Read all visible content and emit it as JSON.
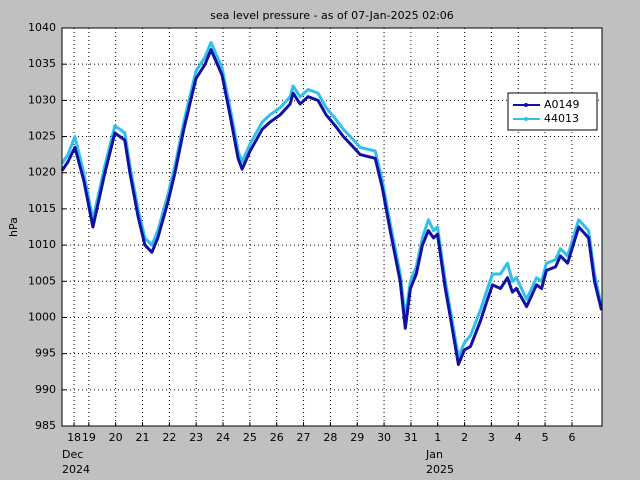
{
  "chart_data": {
    "type": "line",
    "title": "sea level pressure - as of 07-Jan-2025 02:06",
    "ylabel": "hPa",
    "annotations": [
      "Dec",
      "2024",
      "Jan",
      "2025"
    ],
    "x": [
      18.0,
      18.22,
      18.48,
      18.81,
      19.15,
      19.6,
      19.97,
      20.34,
      20.53,
      20.83,
      21.09,
      21.35,
      21.57,
      21.95,
      22.21,
      22.54,
      22.99,
      23.33,
      23.55,
      23.96,
      24.26,
      24.56,
      24.71,
      25.01,
      25.46,
      25.75,
      26.13,
      26.5,
      26.61,
      26.87,
      27.17,
      27.54,
      27.84,
      28.18,
      28.48,
      28.74,
      29.11,
      29.67,
      29.93,
      30.23,
      30.6,
      30.79,
      30.98,
      31.2,
      31.43,
      31.65,
      31.84,
      31.99,
      32.28,
      32.47,
      32.77,
      32.99,
      33.22,
      33.59,
      33.81,
      34.04,
      34.34,
      34.6,
      34.78,
      34.93,
      35.31,
      35.68,
      35.87,
      36.05,
      36.39,
      36.57,
      36.84,
      37.25,
      37.62,
      37.84,
      38.1
    ],
    "series": [
      {
        "name": "A0149",
        "color": "#1010a8",
        "values": [
          1020.3,
          1021.5,
          1023.5,
          1019,
          1012.5,
          1020,
          1025.5,
          1024.5,
          1020,
          1014,
          1010,
          1009,
          1011,
          1016,
          1020,
          1026,
          1033,
          1035,
          1037,
          1033.5,
          1028,
          1022,
          1020.5,
          1023,
          1026,
          1027,
          1028,
          1029.5,
          1031,
          1029.5,
          1030.5,
          1030,
          1028,
          1026.5,
          1025,
          1024,
          1022.5,
          1022,
          1018,
          1012,
          1005,
          998.5,
          1004,
          1006,
          1010,
          1012,
          1011,
          1011.5,
          1004,
          1000,
          993.5,
          995.5,
          996,
          999.5,
          1002,
          1004.5,
          1004,
          1005.5,
          1003.5,
          1004,
          1001.5,
          1004.5,
          1004,
          1006.5,
          1007,
          1008.5,
          1007.5,
          1012.5,
          1011,
          1005,
          1001
        ]
      },
      {
        "name": "44013",
        "color": "#30c0ec",
        "values": [
          1021.3,
          1022.5,
          1025,
          1020,
          1013.5,
          1021,
          1026.5,
          1025.5,
          1021,
          1015,
          1011,
          1010,
          1012,
          1017,
          1021,
          1027,
          1034,
          1036,
          1038,
          1034.5,
          1029,
          1023,
          1021.5,
          1024,
          1027,
          1028,
          1029,
          1030.5,
          1032,
          1030.5,
          1031.5,
          1031,
          1029,
          1027.5,
          1026,
          1025,
          1023.5,
          1023,
          1019,
          1013,
          1006,
          1000,
          1005,
          1007,
          1011,
          1013.5,
          1012,
          1012.5,
          1005,
          1001,
          994.5,
          996.5,
          997.5,
          1001,
          1003.5,
          1006,
          1006,
          1007.5,
          1005,
          1005.5,
          1002.5,
          1005.5,
          1005,
          1007.5,
          1008,
          1009.5,
          1008.5,
          1013.5,
          1012,
          1006,
          1001.5
        ]
      }
    ],
    "xlim": [
      18.0,
      38.12
    ],
    "xticks": [
      {
        "value": 18.45,
        "label": "18"
      },
      19,
      20,
      21,
      22,
      23,
      24,
      25,
      26,
      27,
      28,
      29,
      30,
      31,
      {
        "value": 32,
        "label": "1"
      },
      {
        "value": 33,
        "label": "2"
      },
      {
        "value": 34,
        "label": "3"
      },
      {
        "value": 35,
        "label": "4"
      },
      {
        "value": 36,
        "label": "5"
      },
      {
        "value": 37,
        "label": "6"
      }
    ],
    "ylim": [
      985,
      1040
    ],
    "yticks": [
      985,
      990,
      995,
      1000,
      1005,
      1010,
      1015,
      1020,
      1025,
      1030,
      1035,
      1040
    ],
    "grid": true,
    "legend": "upper right"
  }
}
